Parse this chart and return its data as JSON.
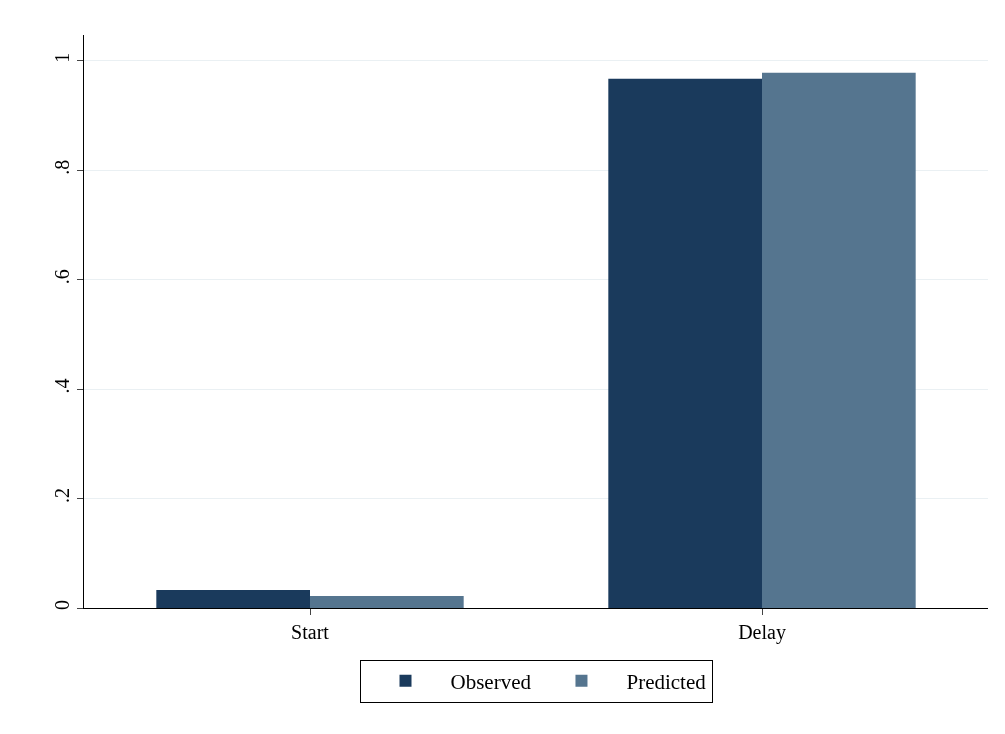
{
  "chart_data": {
    "type": "bar",
    "categories": [
      "Start",
      "Delay"
    ],
    "series": [
      {
        "name": "Observed",
        "color": "#1a3a5c",
        "values": [
          0.033,
          0.967
        ]
      },
      {
        "name": "Predicted",
        "color": "#55758f",
        "values": [
          0.022,
          0.978
        ]
      }
    ],
    "ylim": [
      0,
      1.047
    ],
    "yticks": [
      0,
      {
        "value": 0.2,
        "label": ".2"
      },
      {
        "value": 0.4,
        "label": ".4"
      },
      {
        "value": 0.6,
        "label": ".6"
      },
      {
        "value": 0.8,
        "label": ".8"
      },
      1
    ],
    "grid": "y",
    "legend": "bottom"
  }
}
